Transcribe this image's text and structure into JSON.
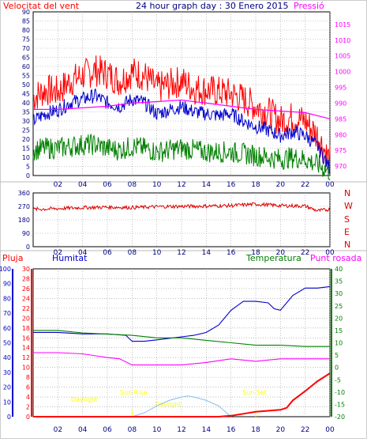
{
  "header": {
    "wind_label": "Velocitat del vent",
    "title": "24 hour graph day : 30 Enero 2015",
    "pressure_label": "Pressió"
  },
  "colors": {
    "wind_max": "#ff0000",
    "wind_avg": "#0000cc",
    "wind_min": "#008000",
    "pressure": "#ff00ff",
    "direction": "#dd0000",
    "rain": "#ff0000",
    "humidity": "#0000cc",
    "temperature": "#008000",
    "dewpoint": "#ff00ff",
    "solar": "#88bbee",
    "astro": "#ffff00",
    "axis": "#000080",
    "grid": "#999999"
  },
  "panel3_labels": {
    "rain": "Pluja",
    "humidity": "Humitat",
    "temperature": "Temperatura",
    "dewpoint": "Punt rosada"
  },
  "astro_labels": {
    "daylight_left": "Daylight",
    "sunrise": "Sun Rise",
    "daylight_mid": "Daylight",
    "sunset": "Sun Set"
  },
  "chart_data": [
    {
      "type": "line",
      "x_ticks": [
        "02",
        "04",
        "06",
        "08",
        "10",
        "12",
        "14",
        "16",
        "18",
        "20",
        "22",
        "00"
      ],
      "x_hours": [
        2,
        4,
        6,
        8,
        10,
        12,
        14,
        16,
        18,
        20,
        22,
        24
      ],
      "xlim": [
        0,
        24
      ],
      "left_axis": {
        "ylim": [
          0,
          90
        ],
        "ticks": [
          0,
          5,
          10,
          15,
          20,
          25,
          30,
          35,
          40,
          45,
          50,
          55,
          60,
          65,
          70,
          75,
          80,
          85,
          90
        ]
      },
      "right_axis": {
        "ylim": [
          967,
          1019
        ],
        "ticks": [
          970,
          975,
          980,
          985,
          990,
          995,
          1000,
          1005,
          1010,
          1015
        ]
      },
      "series": [
        {
          "axis": "left",
          "color_key": "wind_max",
          "x": [
            0,
            1,
            2,
            3,
            4,
            5,
            6,
            7,
            8,
            9,
            10,
            11,
            12,
            13,
            14,
            15,
            16,
            17,
            18,
            19,
            20,
            21,
            22,
            23,
            24
          ],
          "y": [
            43,
            47,
            46,
            52,
            55,
            58,
            56,
            52,
            57,
            55,
            48,
            50,
            52,
            48,
            47,
            46,
            45,
            42,
            38,
            35,
            30,
            32,
            30,
            22,
            8
          ]
        },
        {
          "axis": "left",
          "color_key": "wind_avg",
          "x": [
            0,
            1,
            2,
            3,
            4,
            5,
            6,
            7,
            8,
            9,
            10,
            11,
            12,
            13,
            14,
            15,
            16,
            17,
            18,
            19,
            20,
            21,
            22,
            23,
            24
          ],
          "y": [
            30,
            34,
            36,
            40,
            42,
            44,
            40,
            38,
            42,
            40,
            34,
            36,
            38,
            35,
            34,
            33,
            34,
            30,
            27,
            25,
            22,
            24,
            22,
            16,
            4
          ]
        },
        {
          "axis": "left",
          "color_key": "wind_min",
          "x": [
            0,
            1,
            2,
            3,
            4,
            5,
            6,
            7,
            8,
            9,
            10,
            11,
            12,
            13,
            14,
            15,
            16,
            17,
            18,
            19,
            20,
            21,
            22,
            23,
            24
          ],
          "y": [
            14,
            15,
            15,
            16,
            17,
            17,
            15,
            14,
            16,
            15,
            13,
            14,
            15,
            14,
            13,
            13,
            13,
            12,
            11,
            10,
            9,
            10,
            9,
            6,
            2
          ]
        },
        {
          "axis": "right",
          "color_key": "pressure",
          "x": [
            0,
            2,
            4,
            6,
            8,
            10,
            12,
            13,
            14,
            16,
            18,
            20,
            22,
            24
          ],
          "y": [
            988,
            988,
            988.5,
            989,
            990,
            990.5,
            991,
            990.5,
            990,
            989,
            988,
            987.5,
            987,
            985
          ]
        }
      ]
    },
    {
      "type": "line",
      "x_ticks": [
        "02",
        "04",
        "06",
        "08",
        "10",
        "12",
        "14",
        "16",
        "18",
        "20",
        "22",
        "00"
      ],
      "x_hours": [
        2,
        4,
        6,
        8,
        10,
        12,
        14,
        16,
        18,
        20,
        22,
        24
      ],
      "xlim": [
        0,
        24
      ],
      "left_axis": {
        "ylim": [
          0,
          360
        ],
        "ticks": [
          0,
          90,
          180,
          270,
          360
        ]
      },
      "right_axis_labels": [
        "N",
        "W",
        "S",
        "E",
        "N"
      ],
      "series": [
        {
          "axis": "left",
          "color_key": "direction",
          "x": [
            0,
            2,
            4,
            6,
            8,
            10,
            12,
            14,
            16,
            18,
            20,
            22,
            23,
            24
          ],
          "y": [
            250,
            255,
            262,
            265,
            262,
            268,
            270,
            272,
            275,
            285,
            275,
            272,
            240,
            250
          ]
        }
      ]
    },
    {
      "type": "line",
      "x_ticks": [
        "02",
        "04",
        "06",
        "08",
        "10",
        "12",
        "14",
        "16",
        "18",
        "20",
        "22",
        "00"
      ],
      "x_hours": [
        2,
        4,
        6,
        8,
        10,
        12,
        14,
        16,
        18,
        20,
        22,
        24
      ],
      "xlim": [
        0,
        24
      ],
      "humidity_axis": {
        "ylim": [
          0,
          100
        ],
        "ticks": [
          0,
          10,
          20,
          30,
          40,
          50,
          60,
          70,
          80,
          90,
          100
        ]
      },
      "rain_axis": {
        "ylim": [
          0,
          30
        ],
        "ticks": [
          0,
          2,
          4,
          6,
          8,
          10,
          12,
          14,
          16,
          18,
          20,
          22,
          24,
          26,
          28,
          30
        ]
      },
      "temp_axis": {
        "ylim": [
          -20,
          40
        ],
        "ticks": [
          -20,
          -15,
          -10,
          -5,
          0,
          5,
          10,
          15,
          20,
          25,
          30,
          35,
          40
        ]
      },
      "series": [
        {
          "axis": "humidity",
          "color_key": "humidity",
          "x": [
            0,
            2,
            4,
            6,
            7.5,
            8,
            9,
            10,
            11,
            12,
            13,
            14,
            15,
            16,
            17,
            18,
            19,
            19.5,
            20,
            21,
            22,
            23,
            24
          ],
          "y": [
            57,
            57,
            56,
            56,
            55,
            51,
            51,
            52,
            53,
            54,
            55,
            57,
            62,
            72,
            78,
            78,
            77,
            73,
            72,
            82,
            87,
            87,
            88
          ]
        },
        {
          "axis": "temp",
          "color_key": "temperature",
          "x": [
            0,
            2,
            4,
            6,
            8,
            10,
            12,
            14,
            16,
            18,
            20,
            22,
            24
          ],
          "y": [
            15,
            15,
            14,
            13.5,
            13,
            12,
            12,
            11,
            10,
            9,
            9,
            8.5,
            8.5
          ]
        },
        {
          "axis": "temp",
          "color_key": "dewpoint",
          "x": [
            0,
            2,
            4,
            6,
            7,
            8,
            10,
            12,
            14,
            16,
            18,
            20,
            22,
            24
          ],
          "y": [
            6,
            6,
            5.5,
            4,
            3.5,
            1,
            1,
            1,
            2,
            3.5,
            2.5,
            3.5,
            3.5,
            3.5
          ]
        },
        {
          "axis": "rain",
          "color_key": "rain",
          "x": [
            0,
            8,
            9,
            10,
            11,
            12,
            13,
            14,
            15,
            16,
            17,
            18,
            19,
            20,
            20.5,
            21,
            22,
            23,
            24
          ],
          "y": [
            0,
            0,
            0,
            0,
            0,
            0,
            0,
            0,
            0,
            0.2,
            0.6,
            1.0,
            1.2,
            1.4,
            1.8,
            3.3,
            5.2,
            7.2,
            8.8
          ]
        },
        {
          "axis": "rain",
          "color_key": "solar",
          "x": [
            8,
            9,
            10,
            11,
            12,
            12.5,
            13,
            14,
            15,
            16
          ],
          "y": [
            0,
            0.8,
            2.2,
            3.3,
            4.0,
            4.2,
            4.0,
            3.3,
            2.2,
            0
          ]
        }
      ]
    }
  ]
}
